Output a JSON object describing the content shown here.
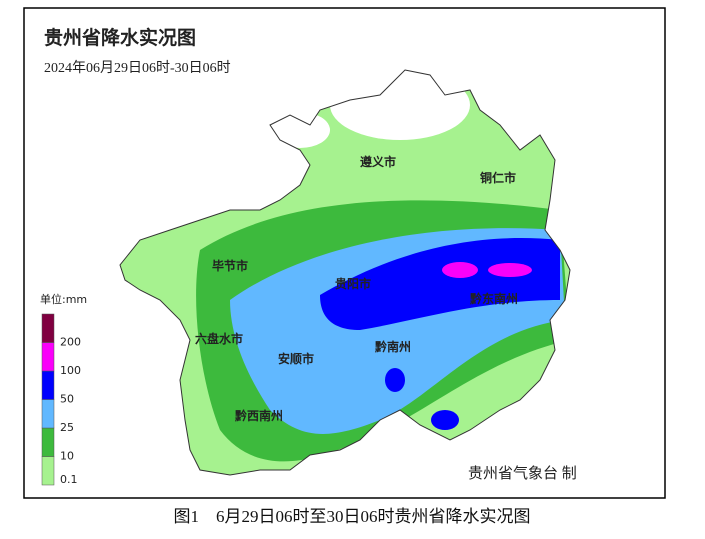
{
  "header": {
    "title": "贵州省降水实况图",
    "subtitle": "2024年06月29日06时-30日06时"
  },
  "legend": {
    "unit": "单位:mm",
    "levels": [
      {
        "value": 0.1,
        "color": "#a6f28f"
      },
      {
        "value": 10,
        "color": "#3dba3d"
      },
      {
        "value": 25,
        "color": "#61b8ff"
      },
      {
        "value": 50,
        "color": "#0000fe"
      },
      {
        "value": 100,
        "color": "#fa00fa"
      },
      {
        "value": 200,
        "color": "#800040"
      }
    ]
  },
  "cities": [
    "遵义市",
    "铜仁市",
    "毕节市",
    "贵阳市",
    "黔东南州",
    "六盘水市",
    "安顺市",
    "黔南州",
    "黔西南州"
  ],
  "credit": "贵州省气象台 制",
  "caption": "图1　6月29日06时至30日06时贵州省降水实况图"
}
